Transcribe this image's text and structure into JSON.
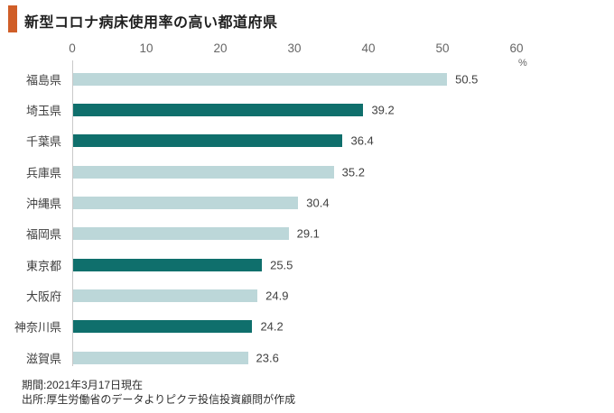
{
  "title": {
    "text": "新型コロナ病床使用率の高い都道府県",
    "accent_color": "#d05e28"
  },
  "chart_data": {
    "type": "bar",
    "orientation": "horizontal",
    "title": "新型コロナ病床使用率の高い都道府県",
    "categories": [
      "福島県",
      "埼玉県",
      "千葉県",
      "兵庫県",
      "沖縄県",
      "福岡県",
      "東京都",
      "大阪府",
      "神奈川県",
      "滋賀県"
    ],
    "values": [
      50.5,
      39.2,
      36.4,
      35.2,
      30.4,
      29.1,
      25.5,
      24.9,
      24.2,
      23.6
    ],
    "highlighted": [
      false,
      true,
      true,
      false,
      false,
      false,
      true,
      false,
      true,
      false
    ],
    "x_ticks": [
      0,
      10,
      20,
      30,
      40,
      50,
      60
    ],
    "xlim": [
      0,
      60
    ],
    "x_unit": "%",
    "grid": false,
    "legend": "none",
    "data_labels": "outside-end",
    "colors": {
      "bar_default": "#bcd7d9",
      "bar_highlight": "#0f6f6c",
      "axis_line": "#c9c9c9",
      "tick_text": "#666666",
      "label_text": "#404040"
    }
  },
  "footer": {
    "period": "期間:2021年3月17日現在",
    "source": "出所:厚生労働省のデータよりピクテ投信投資顧問が作成"
  }
}
